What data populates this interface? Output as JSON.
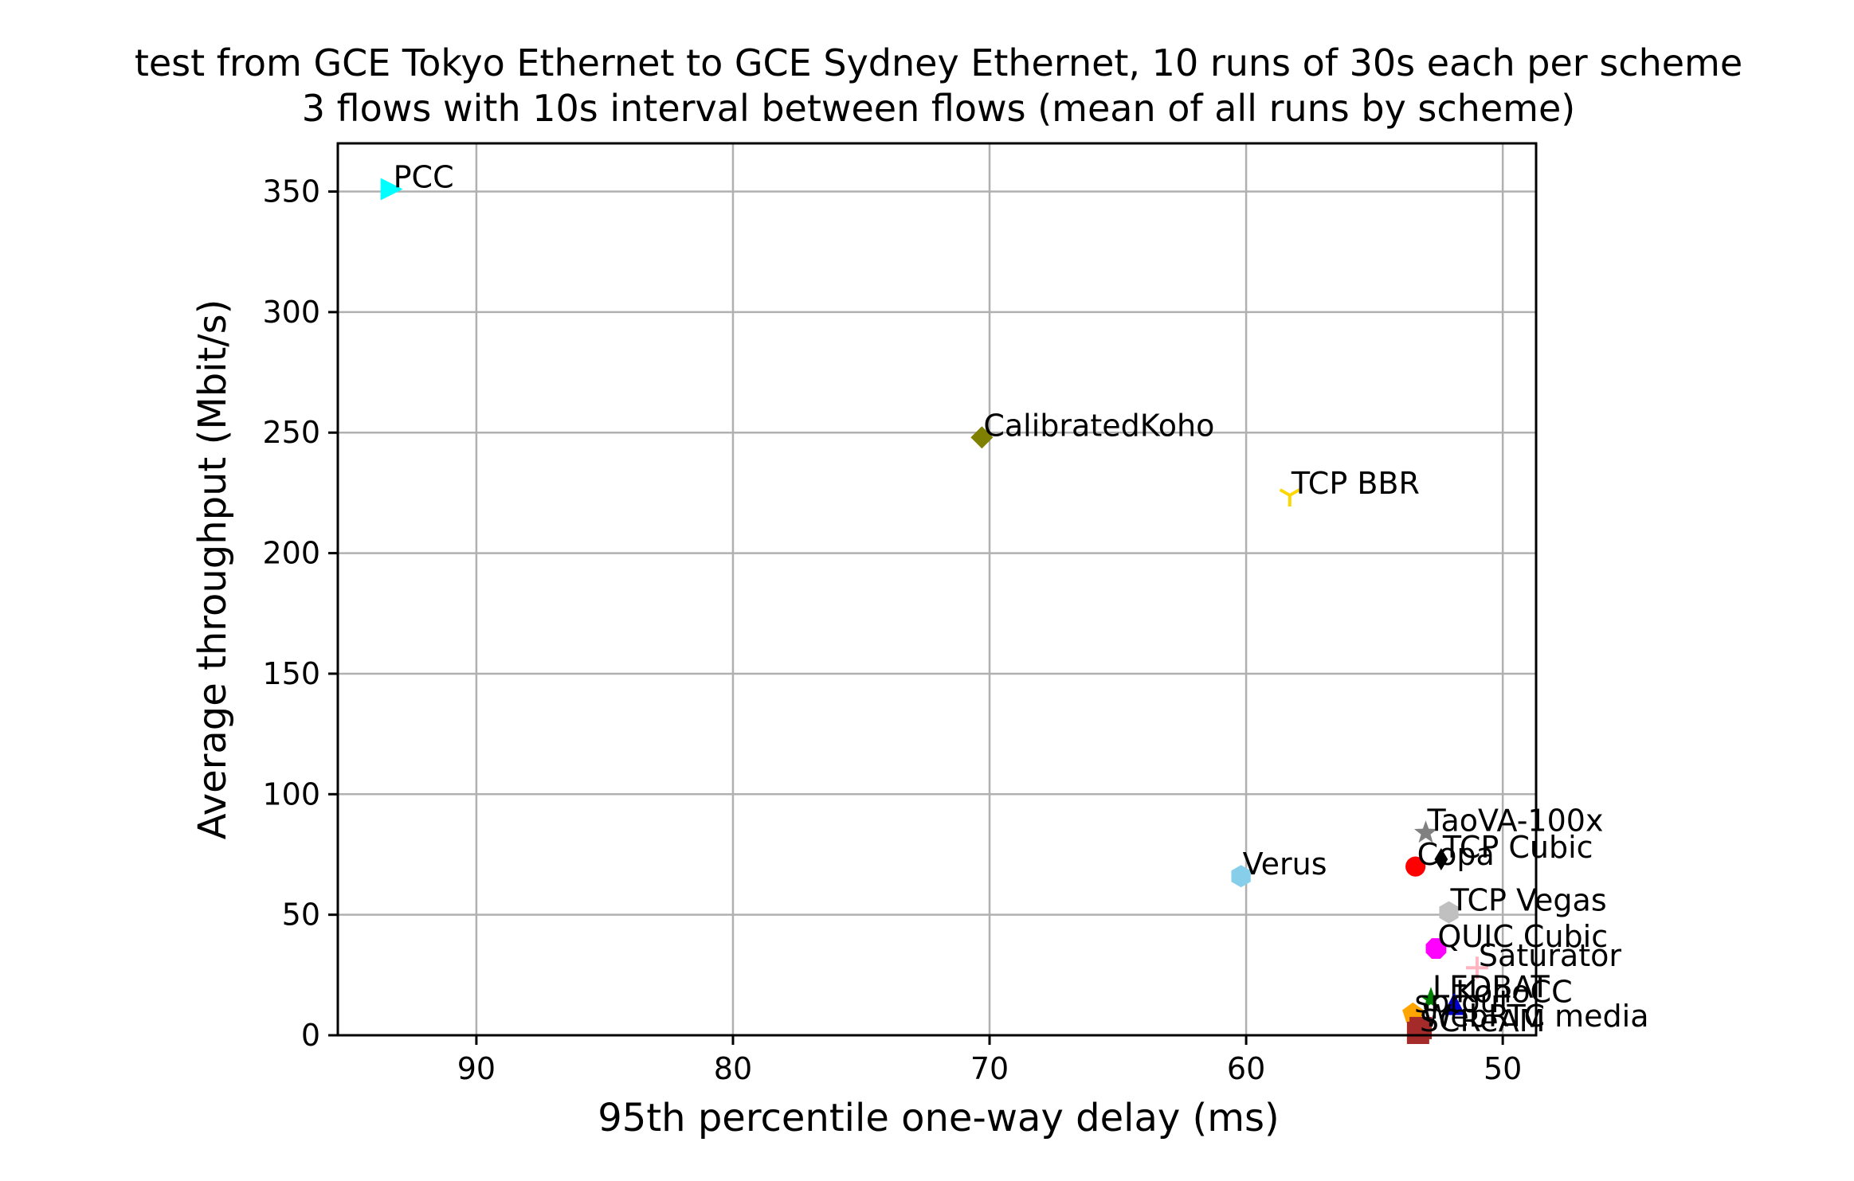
{
  "chart_data": {
    "type": "scatter",
    "title": "test from GCE Tokyo Ethernet to GCE Sydney Ethernet, 10 runs of 30s each per scheme",
    "subtitle": "3 flows with 10s interval between flows (mean of all runs by scheme)",
    "xlabel": "95th percentile one-way delay (ms)",
    "ylabel": "Average throughput (Mbit/s)",
    "xlim": [
      95.4,
      48.7
    ],
    "ylim": [
      0,
      370
    ],
    "x_inverted": true,
    "xticks": [
      90,
      80,
      70,
      60,
      50
    ],
    "yticks": [
      0,
      50,
      100,
      150,
      200,
      250,
      300,
      350
    ],
    "grid": true,
    "points": [
      {
        "name": "PCC",
        "x": 93.3,
        "y": 351,
        "marker": "triangle-right",
        "color": "#00ffff"
      },
      {
        "name": "CalibratedKoho",
        "x": 70.3,
        "y": 248,
        "marker": "diamond",
        "color": "#808000"
      },
      {
        "name": "TCP BBR",
        "x": 58.3,
        "y": 224,
        "marker": "tri-down",
        "color": "#ffd700"
      },
      {
        "name": "Verus",
        "x": 60.2,
        "y": 66,
        "marker": "hexagon",
        "color": "#87ceeb"
      },
      {
        "name": "TaoVA-100x",
        "x": 53.0,
        "y": 84,
        "marker": "star",
        "color": "#808080"
      },
      {
        "name": "TCP Cubic",
        "x": 52.4,
        "y": 73,
        "marker": "thin-diamond",
        "color": "#000000"
      },
      {
        "name": "Copa",
        "x": 53.4,
        "y": 70,
        "marker": "circle",
        "color": "#ff0000"
      },
      {
        "name": "TCP Vegas",
        "x": 52.1,
        "y": 51,
        "marker": "hexagon",
        "color": "#c0c0c0"
      },
      {
        "name": "QUIC Cubic",
        "x": 52.6,
        "y": 36,
        "marker": "octagon",
        "color": "#ff00ff"
      },
      {
        "name": "Saturator",
        "x": 51.0,
        "y": 28,
        "marker": "plus",
        "color": "#ffb6c1"
      },
      {
        "name": "LEDBAT",
        "x": 52.8,
        "y": 15,
        "marker": "star",
        "color": "#008000"
      },
      {
        "name": "KohoCC",
        "x": 51.9,
        "y": 13,
        "marker": "triangle-up",
        "color": "#0000cd"
      },
      {
        "name": "sprout",
        "x": 53.5,
        "y": 9,
        "marker": "pentagon",
        "color": "#ffa500"
      },
      {
        "name": "WebRTC media",
        "x": 53.2,
        "y": 3,
        "marker": "square",
        "color": "#a52a2a"
      },
      {
        "name": "SCReAM",
        "x": 53.3,
        "y": 1,
        "marker": "square",
        "color": "#a52a2a"
      }
    ],
    "label_overlap_note": ""
  }
}
